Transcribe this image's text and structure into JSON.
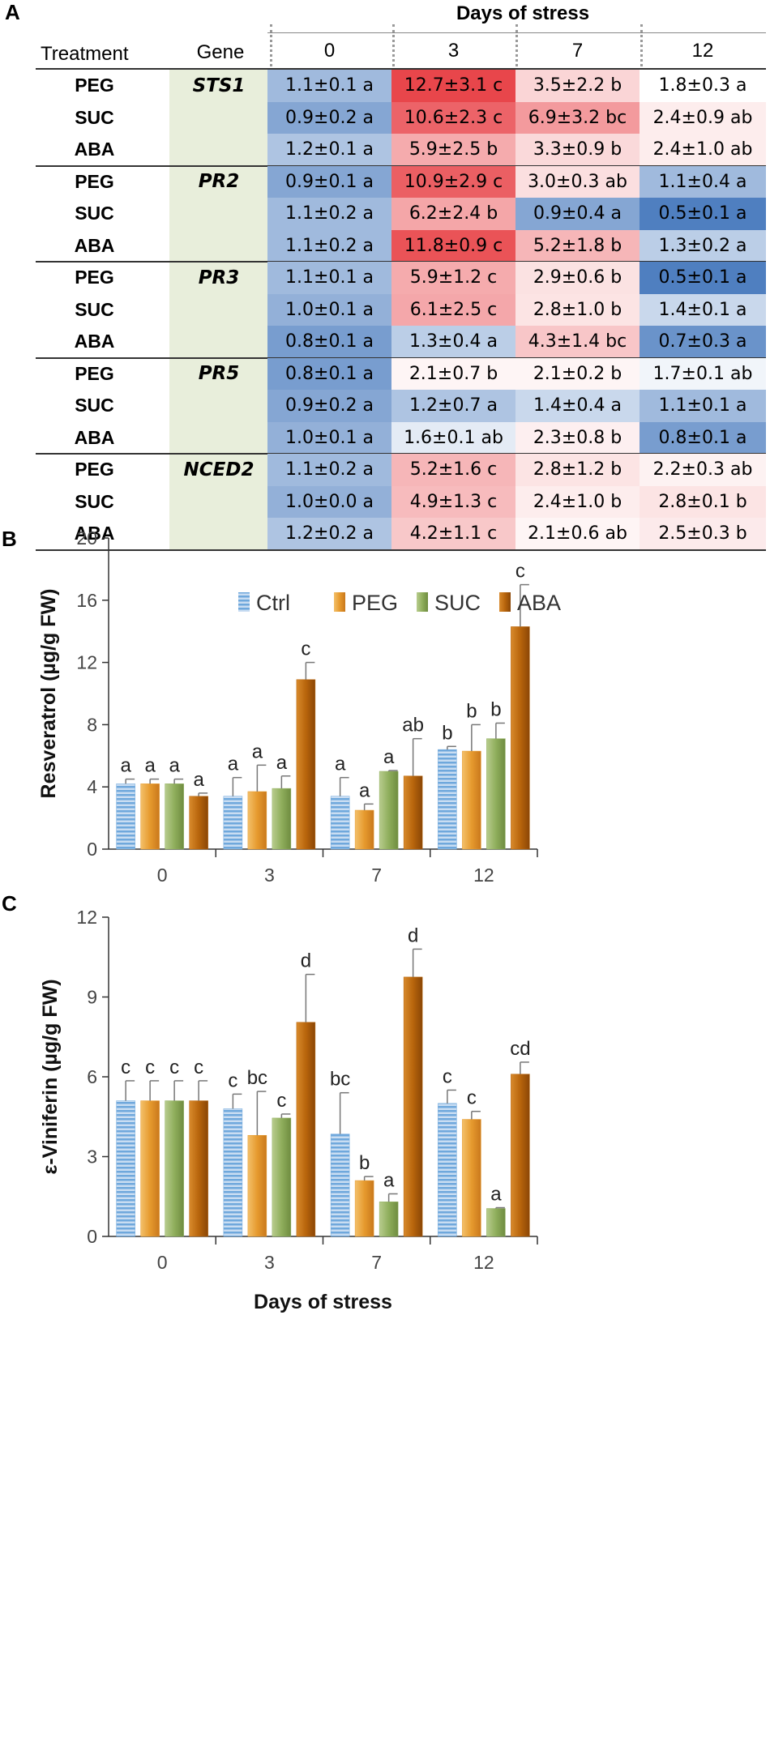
{
  "panel_labels": {
    "a": "A",
    "b": "B",
    "c": "C"
  },
  "table": {
    "super_header": "Days of stress",
    "col_treatment": "Treatment",
    "col_gene": "Gene",
    "days": [
      "0",
      "3",
      "7",
      "12"
    ],
    "groups": [
      {
        "gene": "STS1",
        "rows": [
          {
            "treatment": "PEG",
            "cells": [
              "1.1±0.1 a",
              "12.7±3.1 c",
              "3.5±2.2 b",
              "1.8±0.3 a"
            ]
          },
          {
            "treatment": "SUC",
            "cells": [
              "0.9±0.2 a",
              "10.6±2.3 c",
              "6.9±3.2 bc",
              "2.4±0.9 ab"
            ]
          },
          {
            "treatment": "ABA",
            "cells": [
              "1.2±0.1 a",
              "5.9±2.5 b",
              "3.3±0.9 b",
              "2.4±1.0 ab"
            ]
          }
        ]
      },
      {
        "gene": "PR2",
        "rows": [
          {
            "treatment": "PEG",
            "cells": [
              "0.9±0.1 a",
              "10.9±2.9 c",
              "3.0±0.3 ab",
              "1.1±0.4 a"
            ]
          },
          {
            "treatment": "SUC",
            "cells": [
              "1.1±0.2 a",
              "6.2±2.4 b",
              "0.9±0.4 a",
              "0.5±0.1 a"
            ]
          },
          {
            "treatment": "ABA",
            "cells": [
              "1.1±0.2 a",
              "11.8±0.9 c",
              "5.2±1.8 b",
              "1.3±0.2 a"
            ]
          }
        ]
      },
      {
        "gene": "PR3",
        "rows": [
          {
            "treatment": "PEG",
            "cells": [
              "1.1±0.1 a",
              "5.9±1.2 c",
              "2.9±0.6 b",
              "0.5±0.1 a"
            ]
          },
          {
            "treatment": "SUC",
            "cells": [
              "1.0±0.1 a",
              "6.1±2.5 c",
              "2.8±1.0 b",
              "1.4±0.1 a"
            ]
          },
          {
            "treatment": "ABA",
            "cells": [
              "0.8±0.1 a",
              "1.3±0.4 a",
              "4.3±1.4 bc",
              "0.7±0.3 a"
            ]
          }
        ]
      },
      {
        "gene": "PR5",
        "rows": [
          {
            "treatment": "PEG",
            "cells": [
              "0.8±0.1 a",
              "2.1±0.7 b",
              "2.1±0.2 b",
              "1.7±0.1 ab"
            ]
          },
          {
            "treatment": "SUC",
            "cells": [
              "0.9±0.2 a",
              "1.2±0.7 a",
              "1.4±0.4 a",
              "1.1±0.1 a"
            ]
          },
          {
            "treatment": "ABA",
            "cells": [
              "1.0±0.1 a",
              "1.6±0.1 ab",
              "2.3±0.8 b",
              "0.8±0.1 a"
            ]
          }
        ]
      },
      {
        "gene": "NCED2",
        "rows": [
          {
            "treatment": "PEG",
            "cells": [
              "1.1±0.2 a",
              "5.2±1.6 c",
              "2.8±1.2 b",
              "2.2±0.3 ab"
            ]
          },
          {
            "treatment": "SUC",
            "cells": [
              "1.0±0.0 a",
              "4.9±1.3 c",
              "2.4±1.0 b",
              "2.8±0.1 b"
            ]
          },
          {
            "treatment": "ABA",
            "cells": [
              "1.2±0.2 a",
              "4.2±1.1 c",
              "2.1±0.6 ab",
              "2.5±0.3 b"
            ]
          }
        ]
      }
    ]
  },
  "colors": {
    "ctrl": "#6fa8dc",
    "peg": "#e69a2e",
    "suc": "#8fae5c",
    "aba": "#b8650c",
    "gene_col_bg": "#e8eedb",
    "heat_low": "#4f7fc0",
    "heat_mid": "#ffffff",
    "heat_high": "#e8454a"
  },
  "chart_data": [
    {
      "type": "bar",
      "title": "",
      "xlabel": "",
      "ylabel": "Resveratrol (µg/g FW)",
      "categories": [
        "0",
        "3",
        "7",
        "12"
      ],
      "ylim": [
        0,
        20
      ],
      "yticks": [
        "0",
        "4",
        "8",
        "12",
        "16",
        "20"
      ],
      "legend": [
        "Ctrl",
        "PEG",
        "SUC",
        "ABA"
      ],
      "legend_position": "top",
      "series": [
        {
          "name": "Ctrl",
          "values": [
            4.2,
            3.4,
            3.4,
            6.4
          ],
          "errors": [
            0.3,
            1.2,
            1.2,
            0.2
          ],
          "letters": [
            "a",
            "a",
            "a",
            "b"
          ]
        },
        {
          "name": "PEG",
          "values": [
            4.2,
            3.7,
            2.5,
            6.3
          ],
          "errors": [
            0.3,
            1.7,
            0.4,
            1.7
          ],
          "letters": [
            "a",
            "a",
            "a",
            "b"
          ]
        },
        {
          "name": "SUC",
          "values": [
            4.2,
            3.9,
            5.0,
            7.1
          ],
          "errors": [
            0.3,
            0.8,
            0.05,
            1.0
          ],
          "letters": [
            "a",
            "a",
            "a",
            "b"
          ]
        },
        {
          "name": "ABA",
          "values": [
            3.4,
            10.9,
            4.7,
            14.3
          ],
          "errors": [
            0.2,
            1.1,
            2.4,
            2.7
          ],
          "letters": [
            "a",
            "c",
            "ab",
            "c"
          ]
        }
      ]
    },
    {
      "type": "bar",
      "title": "",
      "xlabel": "Days of stress",
      "ylabel": "ε-Viniferin (µg/g FW)",
      "categories": [
        "0",
        "3",
        "7",
        "12"
      ],
      "ylim": [
        0,
        12
      ],
      "yticks": [
        "0",
        "3",
        "6",
        "9",
        "12"
      ],
      "series": [
        {
          "name": "Ctrl",
          "values": [
            5.1,
            4.8,
            3.85,
            5.0
          ],
          "errors": [
            0.75,
            0.55,
            1.55,
            0.5
          ],
          "letters": [
            "c",
            "c",
            "bc",
            "c"
          ]
        },
        {
          "name": "PEG",
          "values": [
            5.1,
            3.8,
            2.1,
            4.4
          ],
          "errors": [
            0.75,
            1.65,
            0.15,
            0.3
          ],
          "letters": [
            "c",
            "bc",
            "b",
            "c"
          ]
        },
        {
          "name": "SUC",
          "values": [
            5.1,
            4.45,
            1.3,
            1.05
          ],
          "errors": [
            0.75,
            0.15,
            0.3,
            0.03
          ],
          "letters": [
            "c",
            "c",
            "a",
            "a"
          ]
        },
        {
          "name": "ABA",
          "values": [
            5.1,
            8.05,
            9.75,
            6.1
          ],
          "errors": [
            0.75,
            1.8,
            1.05,
            0.45
          ],
          "letters": [
            "c",
            "d",
            "d",
            "cd"
          ]
        }
      ]
    }
  ]
}
